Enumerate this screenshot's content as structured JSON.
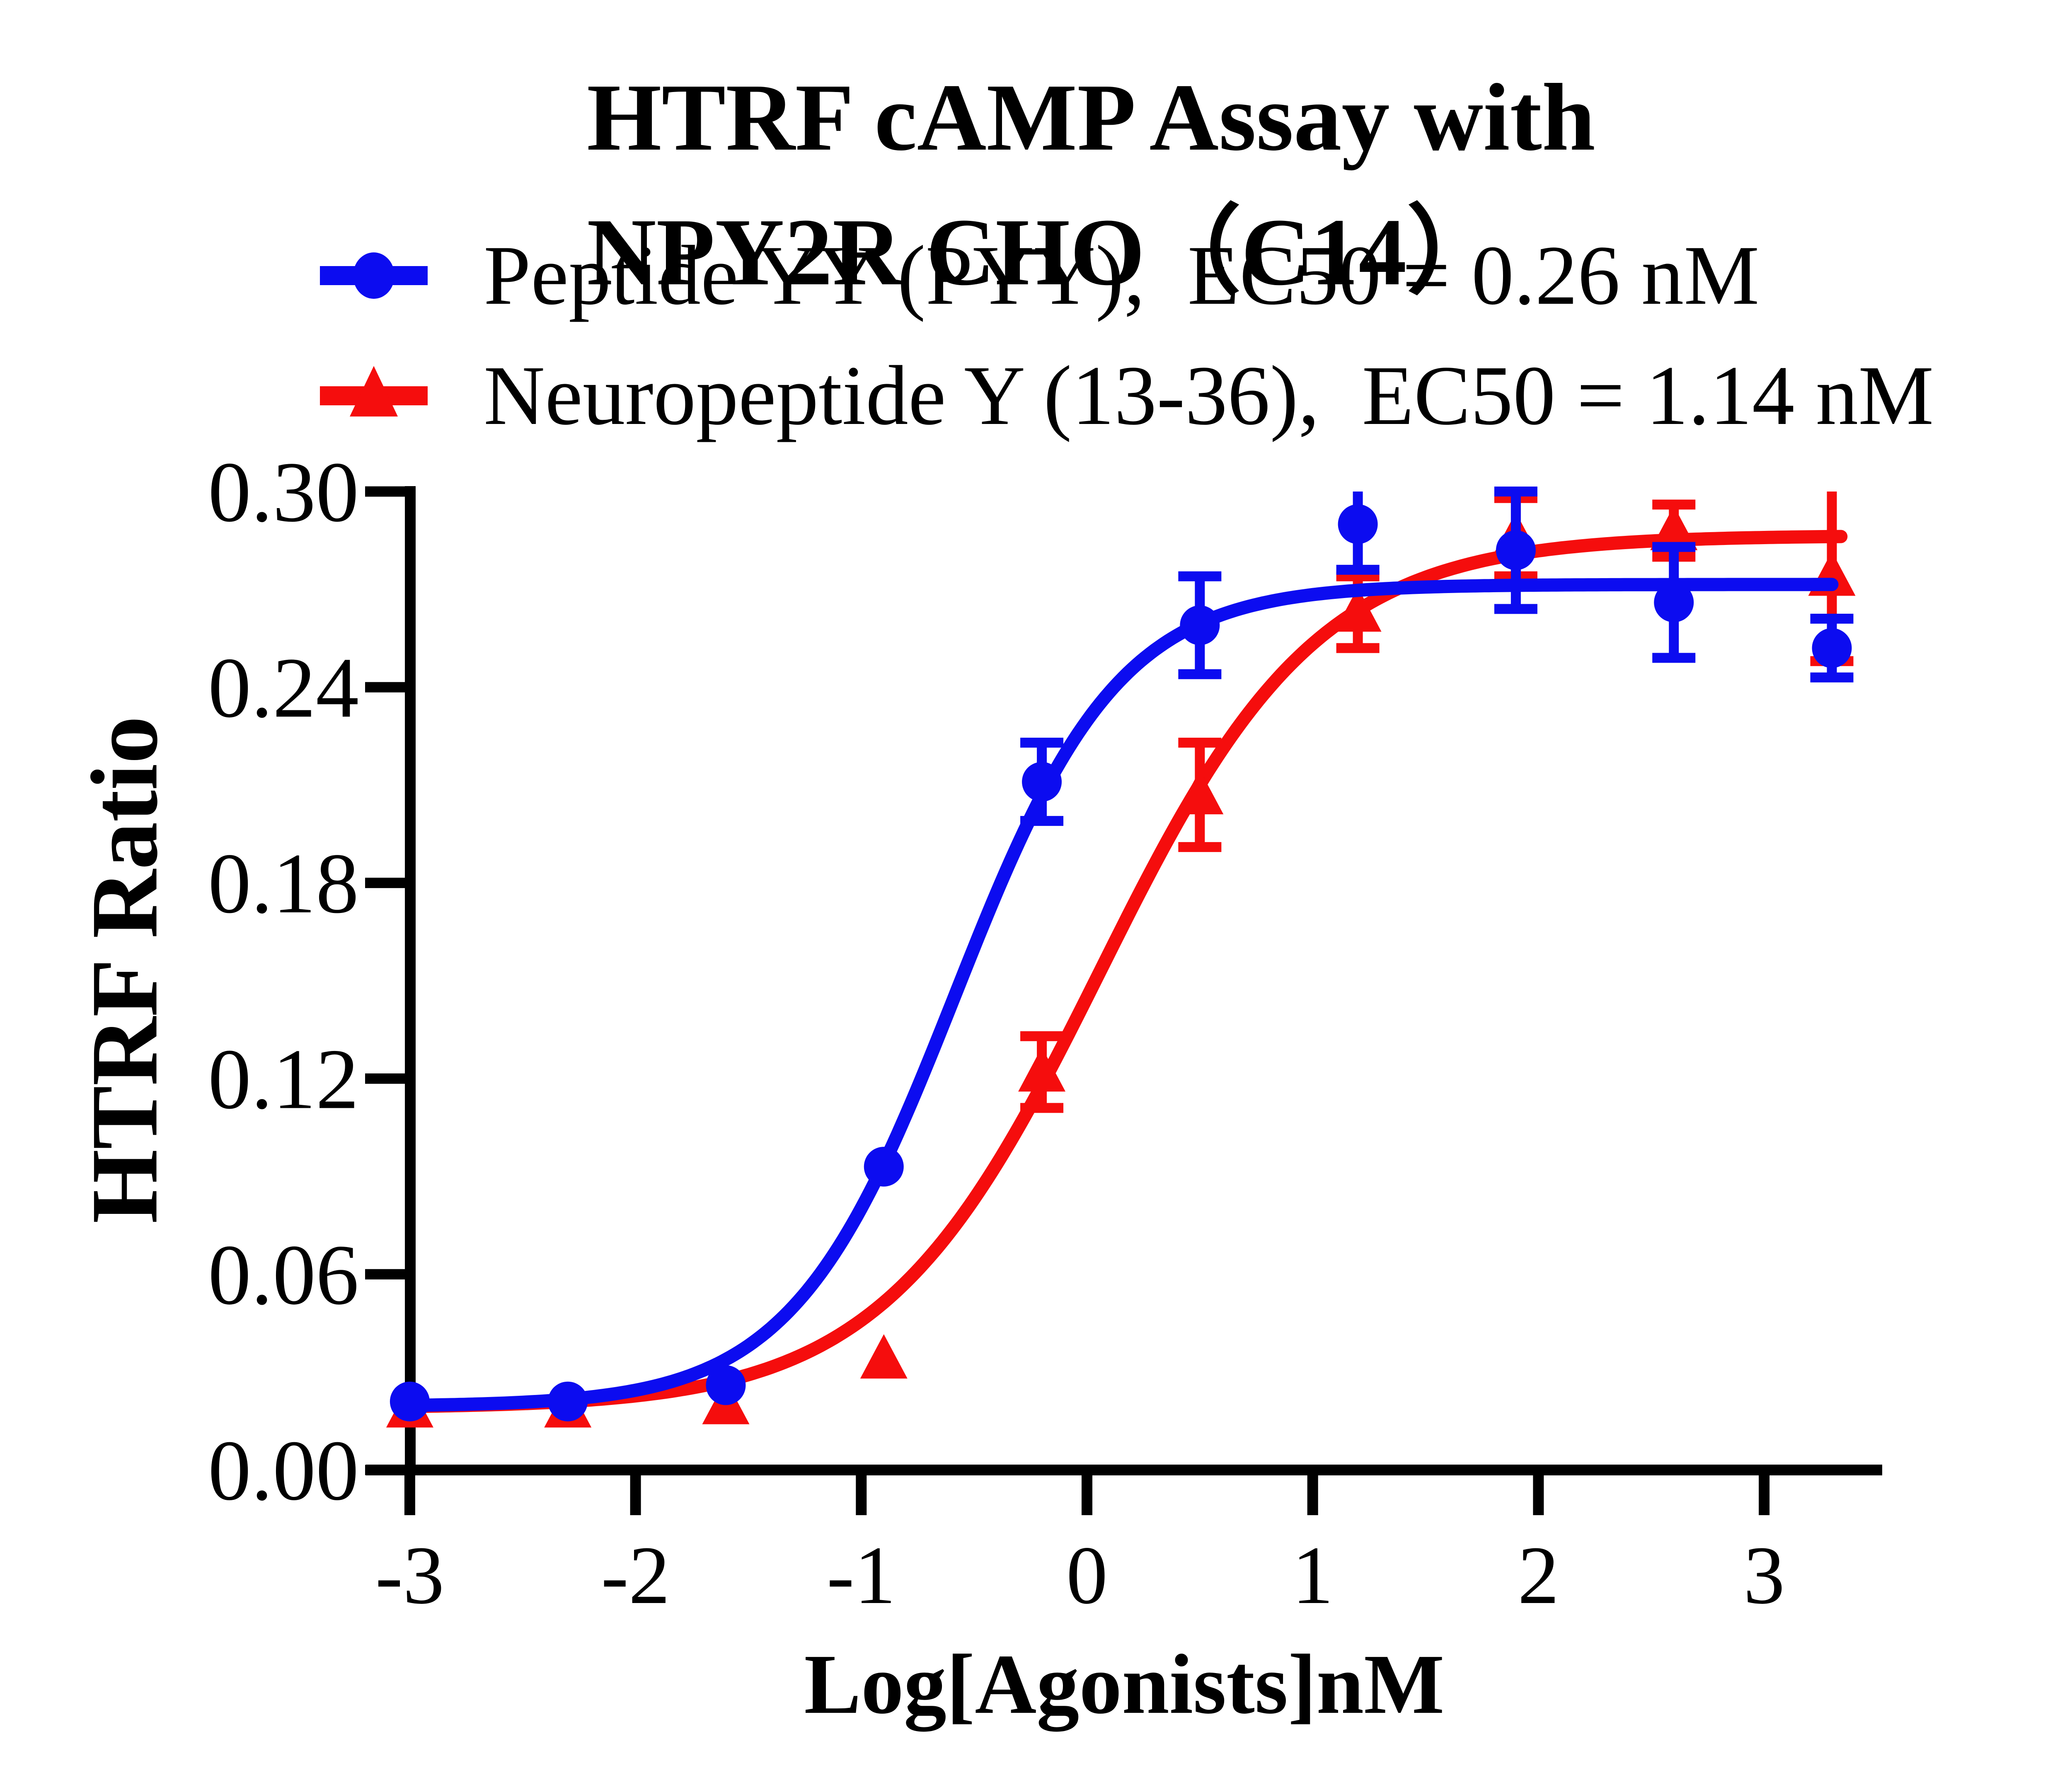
{
  "title": "HTRF cAMP Assay with NPY2R CHO（C14）",
  "colors": {
    "blue": "#0c0cf0",
    "red": "#f50d0d",
    "axis": "#000000",
    "background": "#ffffff"
  },
  "legend": [
    {
      "label": "Peptide YY (PYY),  EC50 = 0.26 nM",
      "marker": "circle-icon",
      "color": "#0c0cf0"
    },
    {
      "label": "Neuropeptide Y (13-36),  EC50 = 1.14 nM",
      "marker": "triangle-icon",
      "color": "#f50d0d"
    }
  ],
  "chart_data": {
    "type": "scatter",
    "title": "HTRF cAMP Assay with NPY2R CHO（C14）",
    "xlabel": "Log[Agonists]nM",
    "ylabel": "HTRF Ratio",
    "xlim": [
      -3.2,
      3.55
    ],
    "ylim": [
      0,
      0.3
    ],
    "grid": false,
    "legend_position": "top-left-above-plot",
    "x_ticks": [
      -3,
      -2,
      -1,
      0,
      1,
      2,
      3
    ],
    "x_tick_labels": [
      "-3",
      "-2",
      "-1",
      "0",
      "1",
      "2",
      "3"
    ],
    "y_ticks": [
      0,
      0.06,
      0.12,
      0.18,
      0.24,
      0.3
    ],
    "y_tick_labels": [
      "0.00",
      "0.06",
      "0.12",
      "0.18",
      "0.24",
      "0.30"
    ],
    "x": [
      -3,
      -2.3,
      -1.6,
      -0.9,
      -0.2,
      0.5,
      1.2,
      1.9,
      2.6,
      3.3
    ],
    "series": [
      {
        "name": "Peptide YY (PYY)",
        "ec50_label": "EC50 = 0.26 nM",
        "marker": "circle",
        "color": "#0c0cf0",
        "y": [
          0.021,
          0.021,
          0.026,
          0.093,
          0.211,
          0.259,
          0.29,
          0.282,
          0.266,
          0.252
        ],
        "sd": [
          0,
          0,
          0,
          0,
          0.012,
          0.015,
          0.014,
          0.018,
          0.017,
          0.009
        ],
        "fit": {
          "bottom": 0.0195,
          "top": 0.2715,
          "log_ec50": -0.585,
          "hill": 1.2,
          "x_end": 3.31
        }
      },
      {
        "name": "Neuropeptide Y (13-36)",
        "ec50_label": "EC50 = 1.14 nM",
        "marker": "triangle",
        "color": "#f50d0d",
        "y": [
          0.019,
          0.019,
          0.02,
          0.034,
          0.122,
          0.207,
          0.263,
          0.286,
          0.288,
          0.274
        ],
        "sd": [
          0,
          0,
          0,
          0,
          0.011,
          0.016,
          0.011,
          0.012,
          0.008,
          0.026
        ],
        "fit": {
          "bottom": 0.019,
          "top": 0.2865,
          "log_ec50": 0.057,
          "hill": 0.9,
          "x_end": 3.34
        }
      }
    ]
  }
}
